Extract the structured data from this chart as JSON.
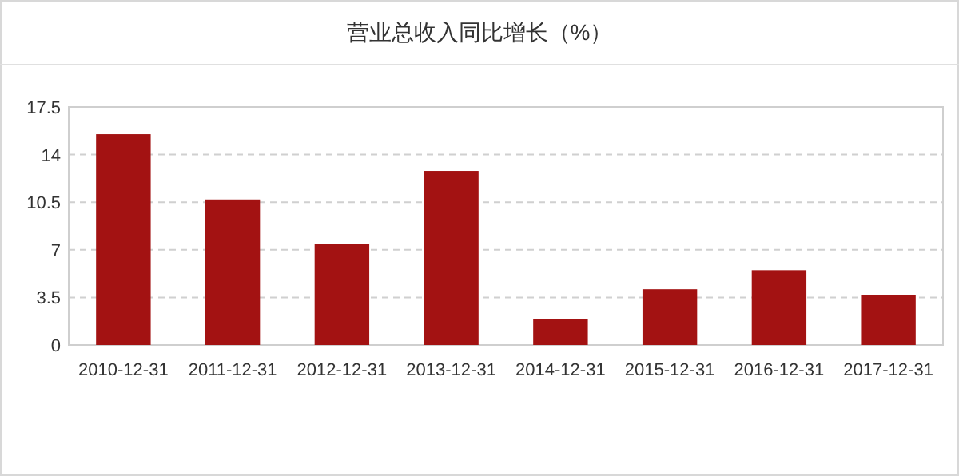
{
  "chart_data": {
    "type": "bar",
    "title": "营业总收入同比增长（%）",
    "categories": [
      "2010-12-31",
      "2011-12-31",
      "2012-12-31",
      "2013-12-31",
      "2014-12-31",
      "2015-12-31",
      "2016-12-31",
      "2017-12-31"
    ],
    "values": [
      15.5,
      10.7,
      7.4,
      12.8,
      1.9,
      4.1,
      5.5,
      3.7
    ],
    "color": "#a31212",
    "ylim": [
      0,
      17.5
    ],
    "yticks": [
      0,
      3.5,
      7,
      10.5,
      14,
      17.5
    ],
    "grid": "y"
  }
}
